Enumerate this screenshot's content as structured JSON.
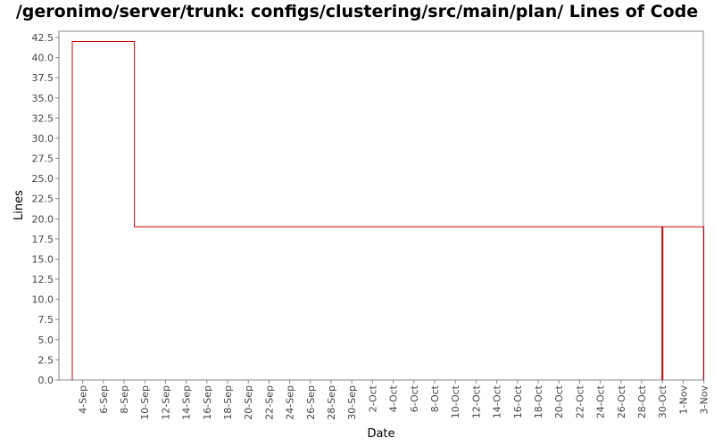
{
  "chart_data": {
    "type": "line",
    "title": "/geronimo/server/trunk: configs/clustering/src/main/plan/ Lines of Code",
    "xlabel": "Date",
    "ylabel": "Lines",
    "ylim": [
      0,
      42.5
    ],
    "yticks": [
      "0.0",
      "2.5",
      "5.0",
      "7.5",
      "10.0",
      "12.5",
      "15.0",
      "17.5",
      "20.0",
      "22.5",
      "25.0",
      "27.5",
      "30.0",
      "32.5",
      "35.0",
      "37.5",
      "40.0",
      "42.5"
    ],
    "xticks": [
      "4-Sep",
      "6-Sep",
      "8-Sep",
      "10-Sep",
      "12-Sep",
      "14-Sep",
      "16-Sep",
      "18-Sep",
      "20-Sep",
      "22-Sep",
      "24-Sep",
      "26-Sep",
      "28-Sep",
      "30-Sep",
      "2-Oct",
      "4-Oct",
      "6-Oct",
      "8-Oct",
      "10-Oct",
      "12-Oct",
      "14-Oct",
      "16-Oct",
      "18-Oct",
      "20-Oct",
      "22-Oct",
      "24-Oct",
      "26-Oct",
      "28-Oct",
      "30-Oct",
      "1-Nov",
      "3-Nov"
    ],
    "grid": false,
    "series_color": "#cc0000",
    "series": [
      {
        "step": true,
        "points": [
          {
            "x": "3-Sep",
            "y": 0
          },
          {
            "x": "3-Sep",
            "y": 42
          },
          {
            "x": "9-Sep",
            "y": 42
          },
          {
            "x": "9-Sep",
            "y": 19
          },
          {
            "x": "30-Oct",
            "y": 19
          },
          {
            "x": "30-Oct",
            "y": 0
          },
          {
            "x": "30-Oct",
            "y": 19
          },
          {
            "x": "3-Nov",
            "y": 19
          },
          {
            "x": "3-Nov",
            "y": 0
          }
        ]
      }
    ]
  }
}
